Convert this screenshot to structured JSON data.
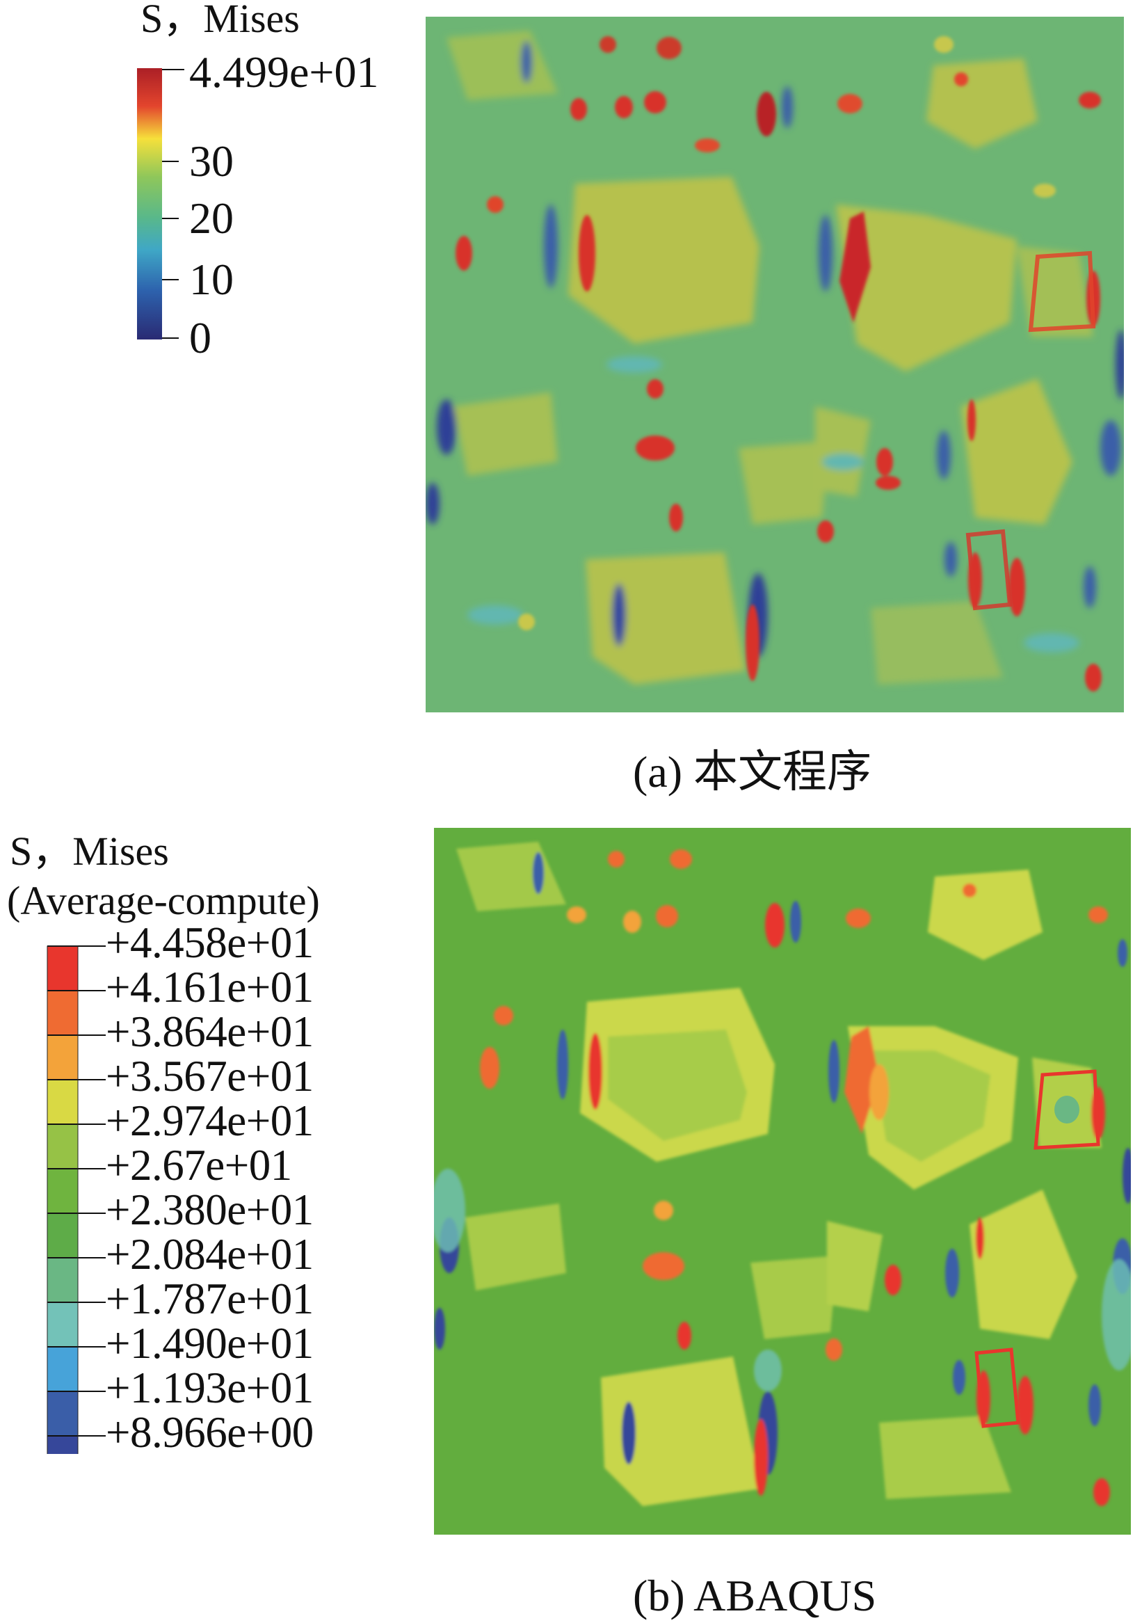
{
  "figure_a": {
    "legend": {
      "title": "S，Mises",
      "max_label": "4.499e+01",
      "ticks": [
        "30",
        "20",
        "10",
        "0"
      ],
      "colorbar_stops": [
        "#ab1f26",
        "#e3452d",
        "#f6e03b",
        "#8fc75a",
        "#59b88a",
        "#3fa7c6",
        "#2d62ad",
        "#2a2a73"
      ]
    },
    "caption": "(a) 本文程序"
  },
  "figure_b": {
    "legend": {
      "title": "S，Mises",
      "subtitle": "(Average-compute)",
      "entries": [
        {
          "label": "+4.458e+01",
          "color": "#e8362d"
        },
        {
          "label": "+4.161e+01",
          "color": "#ef6b32"
        },
        {
          "label": "+3.864e+01",
          "color": "#f3a33a"
        },
        {
          "label": "+3.567e+01",
          "color": "#d9d944"
        },
        {
          "label": "+2.974e+01",
          "color": "#96c246"
        },
        {
          "label": "+2.67e+01",
          "color": "#6fb43f"
        },
        {
          "label": "+2.380e+01",
          "color": "#5eac48"
        },
        {
          "label": "+2.084e+01",
          "color": "#6ab784"
        },
        {
          "label": "+1.787e+01",
          "color": "#73c2b8"
        },
        {
          "label": "+1.490e+01",
          "color": "#47a3d9"
        },
        {
          "label": "+1.193e+01",
          "color": "#3a5ea8"
        },
        {
          "label": "+8.966e+00",
          "color": "#36479a"
        }
      ]
    },
    "caption": "(b) ABAQUS"
  },
  "colors": {
    "field_a_base": "#6db574",
    "field_b_base": "#62ad3e",
    "inclusion_a": "#b7c24e",
    "inclusion_b": "#cbd84c",
    "high": "#d8332a",
    "low": "#2f3f97"
  }
}
